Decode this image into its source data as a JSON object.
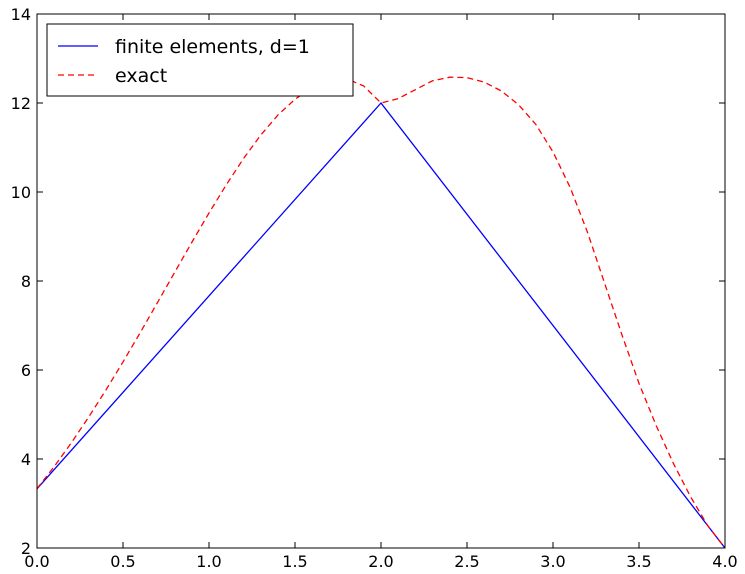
{
  "chart_data": {
    "type": "line",
    "title": "",
    "xlabel": "",
    "ylabel": "",
    "xlim": [
      0,
      4
    ],
    "ylim": [
      2,
      14
    ],
    "grid": false,
    "legend_placement": "top-left",
    "xticks": [
      "0.0",
      "0.5",
      "1.0",
      "1.5",
      "2.0",
      "2.5",
      "3.0",
      "3.5",
      "4.0"
    ],
    "yticks": [
      "2",
      "4",
      "6",
      "8",
      "10",
      "12",
      "14"
    ],
    "series": [
      {
        "name": "finite elements, d=1",
        "color": "#0000ff",
        "style": "solid",
        "x": [
          0,
          2,
          4
        ],
        "y": [
          3.33,
          12.0,
          2.0
        ]
      },
      {
        "name": "exact",
        "color": "#ff0000",
        "style": "dashed",
        "x": [
          0.0,
          0.1,
          0.2,
          0.3,
          0.4,
          0.5,
          0.6,
          0.7,
          0.8,
          0.9,
          1.0,
          1.1,
          1.2,
          1.3,
          1.4,
          1.5,
          1.6,
          1.7,
          1.8,
          1.9,
          2.0,
          2.1,
          2.2,
          2.3,
          2.4,
          2.5,
          2.6,
          2.7,
          2.8,
          2.9,
          3.0,
          3.1,
          3.2,
          3.3,
          3.4,
          3.5,
          3.6,
          3.7,
          3.8,
          3.9,
          4.0
        ],
        "y": [
          3.333,
          3.83,
          4.366,
          4.939,
          5.546,
          6.181,
          6.839,
          7.512,
          8.192,
          8.868,
          9.528,
          10.159,
          10.747,
          11.275,
          11.727,
          12.083,
          12.351,
          12.525,
          12.547,
          12.38,
          12.0,
          12.1,
          12.3,
          12.5,
          12.58,
          12.57,
          12.47,
          12.27,
          11.96,
          11.52,
          10.9,
          10.1,
          9.1,
          7.95,
          6.8,
          5.7,
          4.75,
          3.9,
          3.15,
          2.5,
          2.0
        ]
      }
    ]
  }
}
